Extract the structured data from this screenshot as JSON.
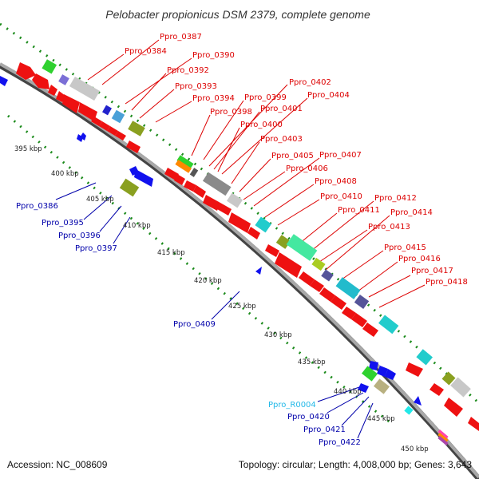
{
  "title": "Pelobacter propionicus DSM 2379, complete genome",
  "footer": {
    "accession": "Accession: NC_008609",
    "summary": "Topology: circular; Length: 4,008,000 bp; Genes: 3,643"
  },
  "colors": {
    "backbone": "#8a8a8a",
    "gc_dots": "#1a8a1a",
    "forward_label": "#dd0000",
    "reverse_label": "#0000aa",
    "rna_label": "#22b8e8"
  },
  "kbp_ticks": [
    "395 kbp",
    "400 kbp",
    "405 kbp",
    "410 kbp",
    "415 kbp",
    "420 kbp",
    "425 kbp",
    "430 kbp",
    "435 kbp",
    "440 kbp",
    "445 kbp",
    "450 kbp"
  ],
  "forward_labels": [
    "Ppro_0387",
    "Ppro_0384",
    "Ppro_0390",
    "Ppro_0392",
    "Ppro_0393",
    "Ppro_0394",
    "Ppro_0398",
    "Ppro_0399",
    "Ppro_0402",
    "Ppro_0401",
    "Ppro_0404",
    "Ppro_0400",
    "Ppro_0403",
    "Ppro_0405",
    "Ppro_0407",
    "Ppro_0406",
    "Ppro_0408",
    "Ppro_0410",
    "Ppro_0412",
    "Ppro_0411",
    "Ppro_0414",
    "Ppro_0413",
    "Ppro_0415",
    "Ppro_0416",
    "Ppro_0417",
    "Ppro_0418"
  ],
  "reverse_labels": [
    "Ppro_0386",
    "Ppro_0395",
    "Ppro_0396",
    "Ppro_0397",
    "Ppro_0409",
    "Ppro_R0004",
    "Ppro_0420",
    "Ppro_0421",
    "Ppro_0422"
  ]
}
